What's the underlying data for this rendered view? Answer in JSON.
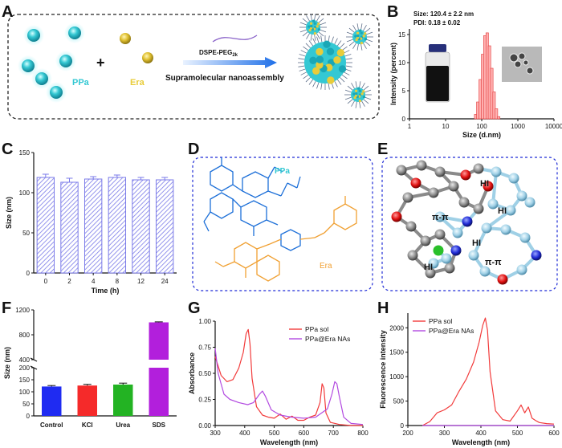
{
  "panels": [
    "A",
    "B",
    "C",
    "D",
    "E",
    "F",
    "G",
    "H"
  ],
  "panelA": {
    "ppa_label": "PPa",
    "era_label": "Era",
    "plus": "+",
    "reagent_main": "DSPE-PEG",
    "reagent_sub": "2k",
    "process": "Supramolecular nanoassembly"
  },
  "panelD": {
    "ppa_label": "PPa",
    "era_label": "Era"
  },
  "panelE": {
    "labels": [
      "HI",
      "HI",
      "HI",
      "HI",
      "π-π",
      "π-π"
    ]
  },
  "colors": {
    "cyan": "#34c8d3",
    "gold": "#e8cc3a",
    "dash_blue": "#1f2bd6",
    "bar_hatch": "#7a7ae8",
    "ctrl": "#1f2bf2",
    "kcl": "#f52a2a",
    "urea": "#23b323",
    "sds": "#b21fdc",
    "line_red": "#f23b3b",
    "line_purple": "#b24ae0",
    "ppa_struct": "#1c6fd8",
    "era_struct": "#f0a032"
  },
  "chart_data": [
    {
      "id": "B",
      "type": "bar",
      "title": "",
      "annotations": [
        "Size: 120.4 ± 2.2 nm",
        "PDI: 0.18 ± 0.02"
      ],
      "xlabel": "Size (d.nm)",
      "ylabel": "Intensity (percent)",
      "xscale": "log",
      "xlim": [
        1,
        10000
      ],
      "xticks": [
        "1",
        "10",
        "100",
        "1000",
        "10000"
      ],
      "ylim": [
        0,
        16
      ],
      "yticks": [
        "0",
        "5",
        "10",
        "15"
      ],
      "x": [
        68,
        78,
        91,
        106,
        122,
        142,
        164,
        190,
        220,
        255,
        295
      ],
      "values": [
        0.8,
        3.0,
        7.0,
        11.5,
        14.8,
        15.3,
        13.0,
        9.0,
        4.8,
        1.8,
        0.4
      ]
    },
    {
      "id": "C",
      "type": "bar",
      "xlabel": "Time (h)",
      "ylabel": "Size (nm)",
      "categories": [
        "0",
        "2",
        "4",
        "8",
        "12",
        "24"
      ],
      "values": [
        119,
        113,
        117,
        119,
        116,
        116
      ],
      "errors": [
        4,
        5,
        3,
        3,
        3,
        3
      ],
      "ylim": [
        0,
        150
      ],
      "yticks": [
        "0",
        "50",
        "100",
        "150"
      ]
    },
    {
      "id": "F",
      "type": "bar",
      "xlabel": "",
      "ylabel": "Size (nm)",
      "categories": [
        "Control",
        "KCl",
        "Urea",
        "SDS"
      ],
      "values": [
        122,
        126,
        130,
        1000
      ],
      "errors": [
        4,
        5,
        6,
        8
      ],
      "axis_break": [
        200,
        400
      ],
      "yticks": [
        "0",
        "50",
        "100",
        "150",
        "200",
        "400",
        "800",
        "1200"
      ]
    },
    {
      "id": "G",
      "type": "line",
      "xlabel": "Wavelength (nm)",
      "ylabel": "Absorbance",
      "xlim": [
        300,
        800
      ],
      "ylim": [
        0,
        1.0
      ],
      "xticks": [
        "300",
        "400",
        "500",
        "600",
        "700",
        "800"
      ],
      "yticks": [
        "0.00",
        "0.25",
        "0.50",
        "0.75",
        "1.00"
      ],
      "series": [
        {
          "name": "PPa sol",
          "x": [
            300,
            320,
            340,
            360,
            380,
            395,
            405,
            412,
            418,
            425,
            440,
            460,
            480,
            500,
            520,
            540,
            560,
            580,
            600,
            620,
            640,
            655,
            662,
            668,
            675,
            690,
            720,
            760,
            800
          ],
          "values": [
            0.66,
            0.48,
            0.42,
            0.44,
            0.55,
            0.7,
            0.88,
            0.92,
            0.78,
            0.45,
            0.18,
            0.1,
            0.08,
            0.07,
            0.11,
            0.06,
            0.09,
            0.05,
            0.05,
            0.08,
            0.1,
            0.22,
            0.4,
            0.36,
            0.12,
            0.03,
            0.01,
            0.0,
            0.0
          ]
        },
        {
          "name": "PPa@Era NAs",
          "x": [
            300,
            310,
            330,
            350,
            380,
            410,
            430,
            450,
            460,
            470,
            490,
            520,
            560,
            600,
            640,
            680,
            695,
            705,
            712,
            720,
            735,
            760,
            800
          ],
          "values": [
            0.74,
            0.5,
            0.3,
            0.25,
            0.22,
            0.2,
            0.22,
            0.3,
            0.33,
            0.28,
            0.15,
            0.1,
            0.08,
            0.07,
            0.08,
            0.16,
            0.3,
            0.42,
            0.4,
            0.28,
            0.08,
            0.02,
            0.01
          ]
        }
      ]
    },
    {
      "id": "H",
      "type": "line",
      "xlabel": "Wavelength (nm)",
      "ylabel": "Fluorescence intensity",
      "xlim": [
        200,
        600
      ],
      "ylim": [
        0,
        2300
      ],
      "xticks": [
        "200",
        "300",
        "400",
        "500",
        "600"
      ],
      "yticks": [
        "0",
        "500",
        "1000",
        "1500",
        "2000"
      ],
      "series": [
        {
          "name": "PPa sol",
          "x": [
            240,
            260,
            280,
            300,
            320,
            340,
            360,
            380,
            395,
            405,
            412,
            418,
            425,
            440,
            460,
            480,
            500,
            510,
            520,
            530,
            540,
            550,
            560,
            580,
            600
          ],
          "values": [
            0,
            80,
            260,
            320,
            420,
            700,
            950,
            1300,
            1700,
            2050,
            2200,
            1950,
            1100,
            300,
            120,
            90,
            300,
            420,
            260,
            380,
            150,
            100,
            60,
            40,
            30
          ]
        },
        {
          "name": "PPa@Era NAs",
          "x": [
            240,
            600
          ],
          "values": [
            0,
            0
          ]
        }
      ]
    }
  ]
}
